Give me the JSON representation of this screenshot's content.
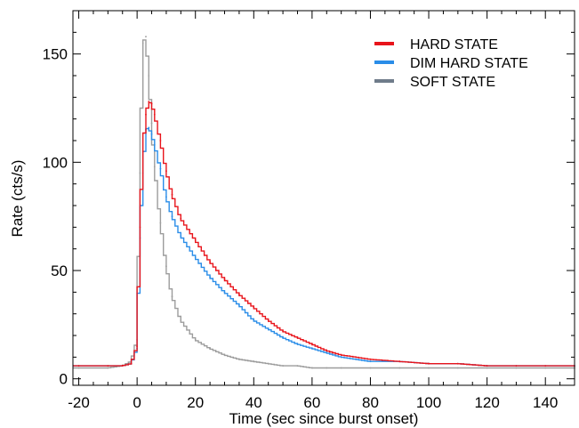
{
  "chart_data": {
    "type": "line",
    "title": "",
    "xlabel": "Time (sec since burst onset)",
    "ylabel": "Rate (cts/s)",
    "xlim": [
      -22,
      150
    ],
    "ylim": [
      -3,
      170
    ],
    "xticks": [
      "-20",
      "0",
      "20",
      "40",
      "60",
      "80",
      "100",
      "120",
      "140"
    ],
    "xtick_values": [
      -20,
      0,
      20,
      40,
      60,
      80,
      100,
      120,
      140
    ],
    "yticks": [
      "0",
      "50",
      "100",
      "150"
    ],
    "ytick_values": [
      0,
      50,
      100,
      150
    ],
    "grid": false,
    "legend_position": "top-right",
    "series": [
      {
        "name": "HARD STATE",
        "color": "#e8141b",
        "x": [
          -20,
          -10,
          -5,
          -2,
          0,
          1,
          2,
          3,
          4,
          5,
          6,
          8,
          10,
          12,
          15,
          20,
          25,
          30,
          35,
          40,
          45,
          50,
          55,
          60,
          65,
          70,
          80,
          90,
          100,
          110,
          120,
          130,
          140,
          150
        ],
        "y": [
          6,
          6,
          6,
          7,
          15,
          70,
          105,
          122,
          128,
          127,
          122,
          110,
          96,
          85,
          74,
          64,
          54,
          46,
          39,
          33,
          27,
          22,
          19,
          16,
          13,
          11,
          9,
          8,
          7,
          7,
          6,
          6,
          6,
          6
        ]
      },
      {
        "name": "DIM HARD STATE",
        "color": "#2a8de8",
        "x": [
          -20,
          -10,
          -5,
          -2,
          0,
          1,
          2,
          3,
          4,
          5,
          6,
          8,
          10,
          12,
          15,
          20,
          25,
          30,
          35,
          40,
          45,
          50,
          55,
          60,
          65,
          70,
          80,
          90,
          100,
          110,
          120,
          130,
          140,
          150
        ],
        "y": [
          6,
          6,
          6,
          7,
          14,
          65,
          95,
          115,
          116,
          113,
          108,
          97,
          84,
          75,
          66,
          56,
          47,
          40,
          34,
          27,
          23,
          19,
          16,
          14,
          12,
          10,
          8,
          8,
          7,
          7,
          6,
          6,
          6,
          6
        ]
      },
      {
        "name": "SOFT STATE",
        "color": "#9c9c9c",
        "x": [
          -20,
          -10,
          -5,
          -2,
          0,
          1,
          2,
          3,
          4,
          5,
          6,
          8,
          10,
          12,
          15,
          20,
          25,
          30,
          35,
          40,
          45,
          50,
          55,
          60,
          65,
          70,
          80,
          90,
          100,
          110,
          120,
          130,
          140,
          150
        ],
        "y": [
          5,
          5,
          6,
          8,
          18,
          95,
          155,
          158,
          140,
          118,
          98,
          72,
          52,
          38,
          27,
          18,
          14,
          11,
          9,
          8,
          7,
          6,
          6,
          5,
          5,
          5,
          5,
          5,
          5,
          5,
          5,
          5,
          5,
          5
        ]
      }
    ]
  }
}
